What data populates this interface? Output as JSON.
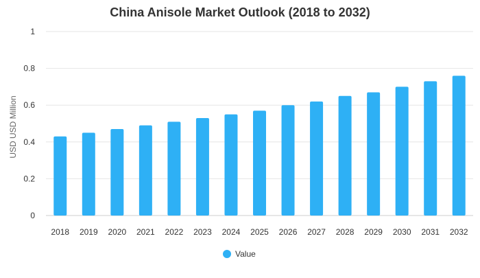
{
  "chart_data": {
    "type": "bar",
    "title": "China Anisole Market Outlook (2018 to 2032)",
    "xlabel": "",
    "ylabel": "USD USD Million",
    "categories": [
      "2018",
      "2019",
      "2020",
      "2021",
      "2022",
      "2023",
      "2024",
      "2025",
      "2026",
      "2027",
      "2028",
      "2029",
      "2030",
      "2031",
      "2032"
    ],
    "series": [
      {
        "name": "Value",
        "values": [
          0.43,
          0.45,
          0.47,
          0.49,
          0.51,
          0.53,
          0.55,
          0.57,
          0.6,
          0.62,
          0.65,
          0.67,
          0.7,
          0.73,
          0.76
        ],
        "color": "#2eb0f5"
      }
    ],
    "ylim": [
      0,
      1
    ],
    "yticks": [
      "0",
      "0.2",
      "0.4",
      "0.6",
      "0.8",
      "1"
    ],
    "grid": true,
    "legend_position": "bottom"
  }
}
